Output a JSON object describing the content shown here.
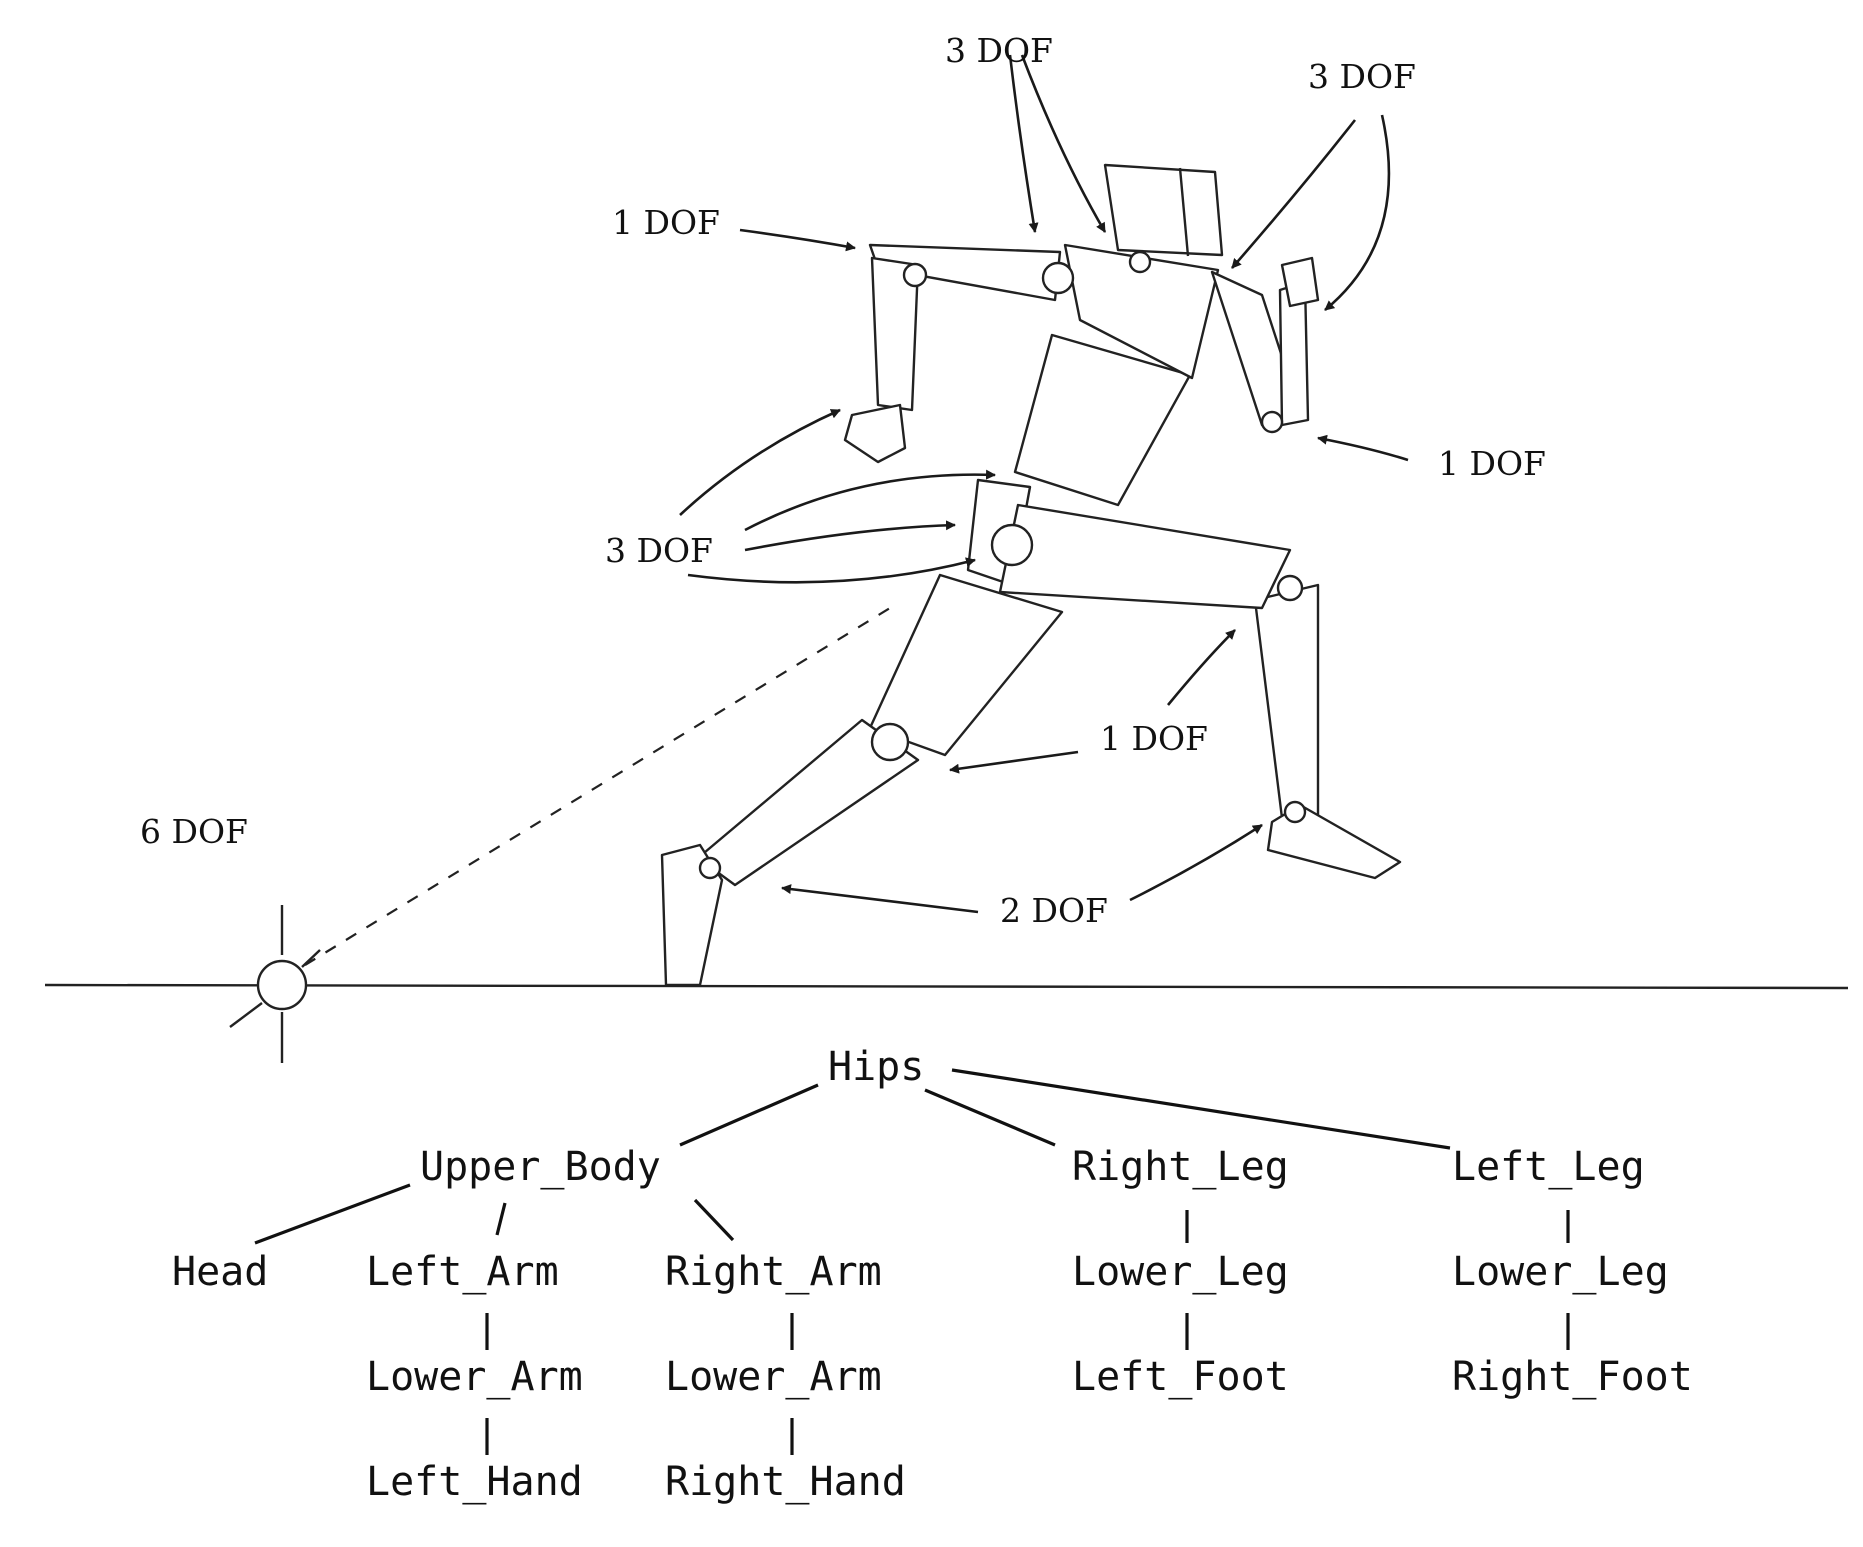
{
  "dof_labels": {
    "neck": "3 DOF",
    "left_shoulder": "3 DOF",
    "left_elbow": "1 DOF",
    "right_elbow": "1 DOF",
    "hips_group": "3 DOF",
    "knees": "1 DOF",
    "ankles": "2 DOF",
    "root": "6 DOF"
  },
  "hierarchy": {
    "root": "Hips",
    "upper_body": "Upper_Body",
    "head": "Head",
    "left_arm": "Left_Arm",
    "left_lower_arm": "Lower_Arm",
    "left_hand": "Left_Hand",
    "right_arm": "Right_Arm",
    "right_lower_arm": "Lower_Arm",
    "right_hand": "Right_Hand",
    "right_leg": "Right_Leg",
    "right_lower_leg": "Lower_Leg",
    "right_leg_foot": "Left_Foot",
    "left_leg": "Left_Leg",
    "left_lower_leg": "Lower_Leg",
    "left_leg_foot": "Right_Foot"
  }
}
